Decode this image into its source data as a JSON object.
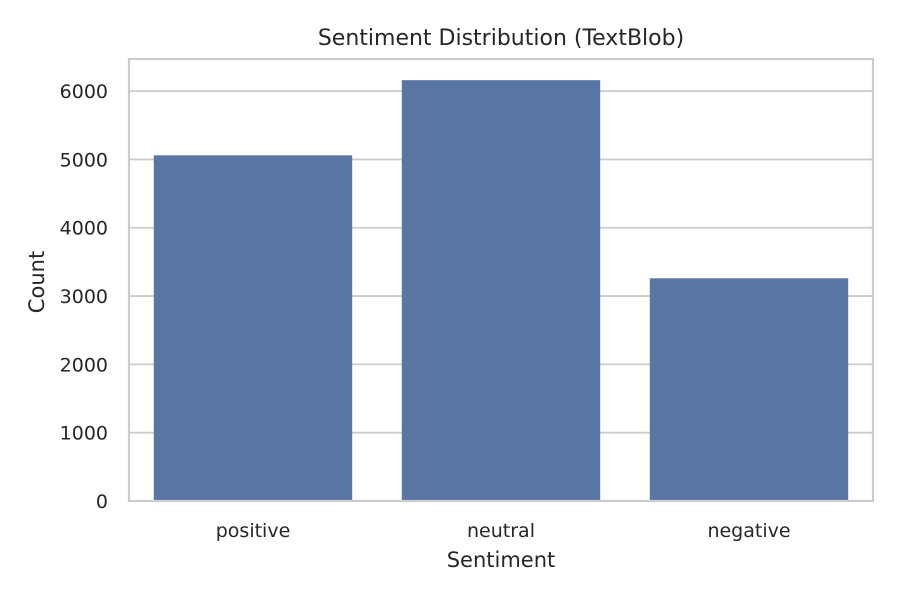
{
  "chart_data": {
    "type": "bar",
    "title": "Sentiment Distribution (TextBlob)",
    "xlabel": "Sentiment",
    "ylabel": "Count",
    "categories": [
      "positive",
      "neutral",
      "negative"
    ],
    "values": [
      5060,
      6160,
      3260
    ],
    "ylim": [
      0,
      6470
    ],
    "yticks": [
      0,
      1000,
      2000,
      3000,
      4000,
      5000,
      6000
    ],
    "grid": true,
    "colors": {
      "bar": "#5975a4",
      "grid": "#cccccc",
      "text": "#262626"
    }
  }
}
